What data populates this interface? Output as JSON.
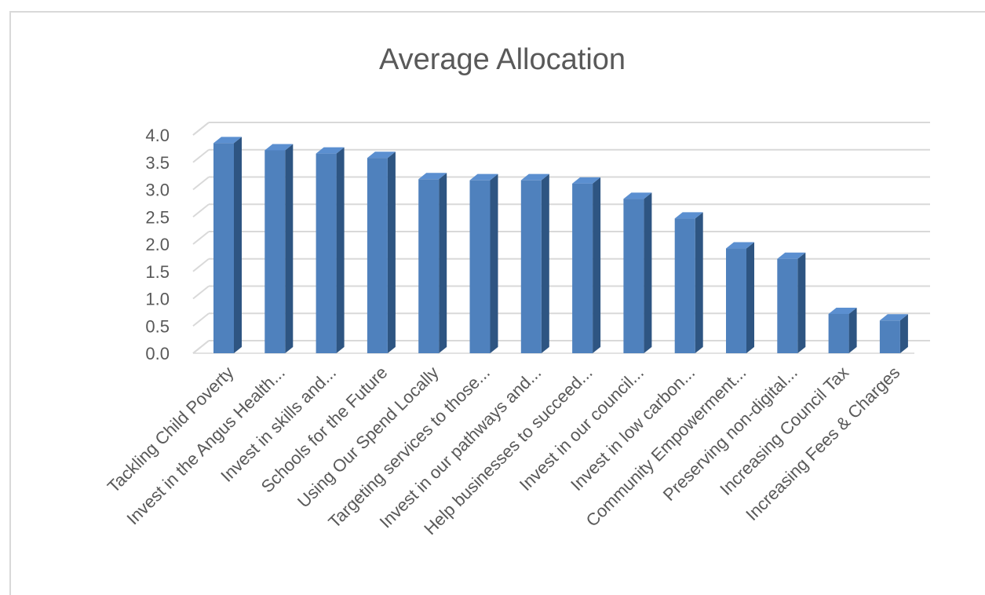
{
  "chart_data": {
    "type": "bar",
    "title": "Average Allocation",
    "categories": [
      "Tackling Child Poverty",
      "Invest in the Angus Health...",
      "Invest in skills and...",
      "Schools for the Future",
      "Using Our Spend Locally",
      "Targeting services to those...",
      "Invest in our pathways and...",
      "Help businesses to succeed...",
      "Invest in our council...",
      "Invest in low carbon...",
      "Community Empowerment...",
      "Preserving non-digital...",
      "Increasing Council Tax",
      "Increasing Fees & Charges"
    ],
    "values": [
      3.85,
      3.72,
      3.66,
      3.58,
      3.19,
      3.17,
      3.17,
      3.11,
      2.83,
      2.47,
      1.92,
      1.73,
      0.72,
      0.6
    ],
    "ylim": [
      0,
      4.0
    ],
    "yticks": [
      "0.0",
      "0.5",
      "1.0",
      "1.5",
      "2.0",
      "2.5",
      "3.0",
      "3.5",
      "4.0"
    ],
    "grid": true,
    "style": "3d-column",
    "colors": {
      "bar_front": "#4f81bd",
      "bar_side": "#2e5582",
      "bar_top": "#5b8fd0",
      "grid": "#d9d9d9",
      "text": "#595959"
    }
  }
}
